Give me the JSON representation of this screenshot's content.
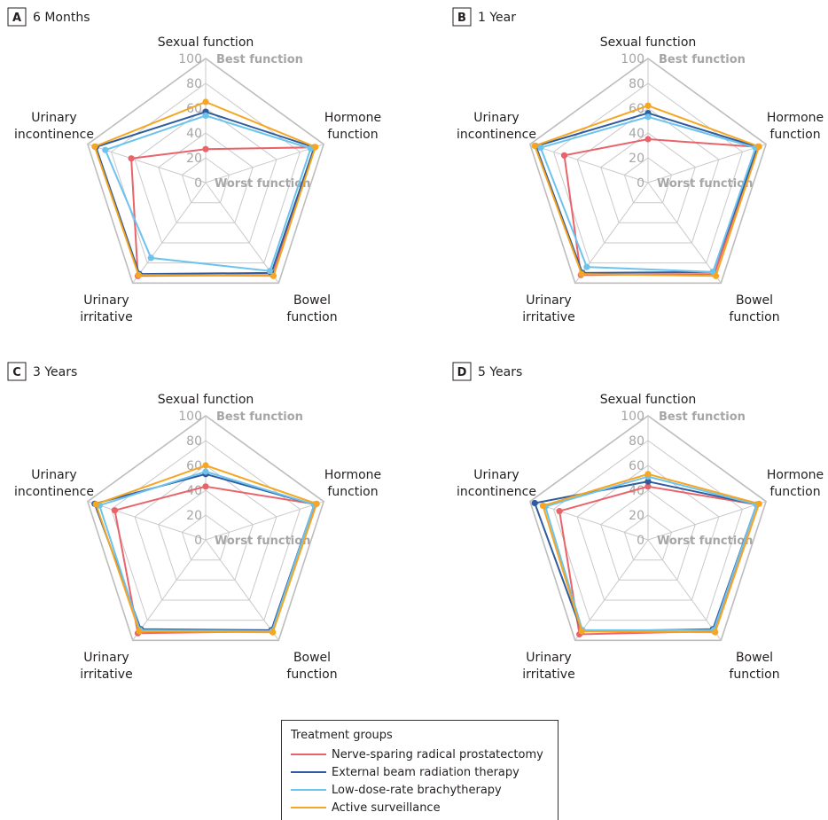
{
  "figure": {
    "panels": [
      {
        "letter": "A",
        "title": "6 Months"
      },
      {
        "letter": "B",
        "title": "1 Year"
      },
      {
        "letter": "C",
        "title": "3 Years"
      },
      {
        "letter": "D",
        "title": "5 Years"
      }
    ],
    "axis_labels": [
      [
        "Sexual function"
      ],
      [
        "Hormone",
        "function"
      ],
      [
        "Bowel",
        "function"
      ],
      [
        "Urinary",
        "irritative"
      ],
      [
        "Urinary",
        "incontinence"
      ]
    ],
    "tick_labels": [
      "0",
      "20",
      "40",
      "60",
      "80",
      "100"
    ],
    "best_label": "Best function",
    "worst_label": "Worst function",
    "legend": {
      "title": "Treatment groups",
      "items": [
        {
          "label": "Nerve-sparing radical prostatectomy",
          "color": "#e8646a"
        },
        {
          "label": "External beam radiation therapy",
          "color": "#2e5c9e"
        },
        {
          "label": "Low-dose-rate brachytherapy",
          "color": "#6cc3ee"
        },
        {
          "label": "Active surveillance",
          "color": "#f5a623"
        }
      ]
    }
  },
  "chart_data": {
    "type": "radar",
    "axes": [
      "Sexual function",
      "Hormone function",
      "Bowel function",
      "Urinary irritative",
      "Urinary incontinence"
    ],
    "range": [
      0,
      100
    ],
    "grid_step": 20,
    "panels": [
      {
        "title": "6 Months",
        "series": [
          {
            "name": "Nerve-sparing radical prostatectomy",
            "values": [
              27,
              92,
              92,
              93,
              63
            ]
          },
          {
            "name": "External beam radiation therapy",
            "values": [
              57,
              92,
              90,
              91,
              93
            ]
          },
          {
            "name": "Low-dose-rate brachytherapy",
            "values": [
              54,
              89,
              88,
              75,
              85
            ]
          },
          {
            "name": "Active surveillance",
            "values": [
              65,
              93,
              93,
              92,
              94
            ]
          }
        ]
      },
      {
        "title": "1 Year",
        "series": [
          {
            "name": "Nerve-sparing radical prostatectomy",
            "values": [
              35,
              93,
              91,
              92,
              71
            ]
          },
          {
            "name": "External beam radiation therapy",
            "values": [
              56,
              93,
              89,
              90,
              95
            ]
          },
          {
            "name": "Low-dose-rate brachytherapy",
            "values": [
              53,
              91,
              89,
              84,
              91
            ]
          },
          {
            "name": "Active surveillance",
            "values": [
              62,
              94,
              93,
              91,
              96
            ]
          }
        ]
      },
      {
        "title": "3 Years",
        "series": [
          {
            "name": "Nerve-sparing radical prostatectomy",
            "values": [
              43,
              93,
              91,
              93,
              77
            ]
          },
          {
            "name": "External beam radiation therapy",
            "values": [
              53,
              92,
              90,
              89,
              94
            ]
          },
          {
            "name": "Low-dose-rate brachytherapy",
            "values": [
              55,
              92,
              91,
              90,
              90
            ]
          },
          {
            "name": "Active surveillance",
            "values": [
              60,
              94,
              92,
              91,
              93
            ]
          }
        ]
      },
      {
        "title": "5 Years",
        "series": [
          {
            "name": "Nerve-sparing radical prostatectomy",
            "values": [
              43,
              92,
              91,
              94,
              75
            ]
          },
          {
            "name": "External beam radiation therapy",
            "values": [
              47,
              92,
              89,
              91,
              96
            ]
          },
          {
            "name": "Low-dose-rate brachytherapy",
            "values": [
              51,
              92,
              90,
              90,
              87
            ]
          },
          {
            "name": "Active surveillance",
            "values": [
              53,
              94,
              92,
              91,
              89
            ]
          }
        ]
      }
    ]
  }
}
